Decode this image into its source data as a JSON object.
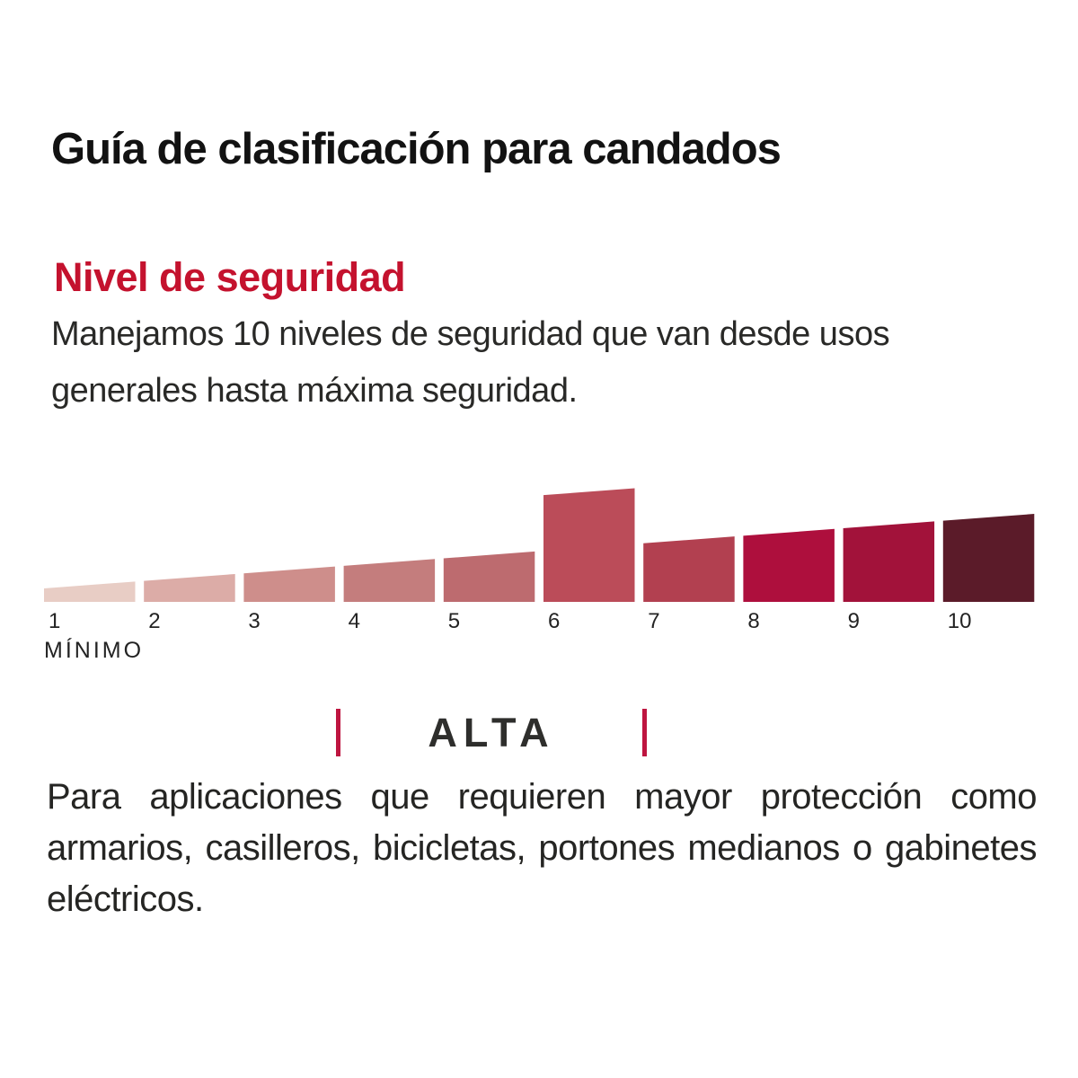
{
  "title": "Guía de clasificación para candados",
  "section": {
    "heading": "Nivel de seguridad",
    "description": "Manejamos 10 niveles de seguridad que van desde usos generales hasta máxima seguridad."
  },
  "chart_data": {
    "type": "bar",
    "title": "Nivel de seguridad",
    "categories": [
      "1",
      "2",
      "3",
      "4",
      "5",
      "6",
      "7",
      "8",
      "9",
      "10"
    ],
    "values": [
      1,
      2,
      3,
      4,
      5,
      6,
      7,
      8,
      9,
      10
    ],
    "highlighted_level": 6,
    "min_label": "MÍNIMO",
    "bar_colors": [
      "#E8CDC5",
      "#DCACA7",
      "#CE8E8B",
      "#C47D7D",
      "#BD6B6F",
      "#BB4C59",
      "#B24050",
      "#AE0F3D",
      "#A2123A",
      "#5B1B29"
    ],
    "legend": false,
    "xlim": [
      1,
      10
    ]
  },
  "range_marker": {
    "label": "ALTA",
    "start_level": 4,
    "end_level": 7,
    "tick_color": "#BE1540"
  },
  "footer_paragraph": "Para aplicaciones que requieren mayor protección como armarios, casilleros, bicicletas, portones medianos o gabinetes eléctricos.",
  "colors": {
    "accent_red": "#C4122E",
    "text": "#262624",
    "background": "#FFFFFF"
  }
}
